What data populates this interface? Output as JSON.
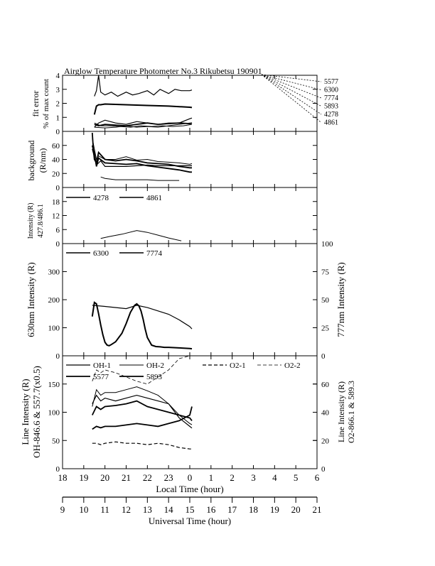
{
  "title": "Airglow Temperature Photometer No.3  Rikubetsu    190901",
  "x_axis_local": {
    "label": "Local Time (hour)",
    "ticks": [
      "18",
      "19",
      "20",
      "21",
      "22",
      "23",
      "0",
      "1",
      "2",
      "3",
      "4",
      "5",
      "6"
    ]
  },
  "x_axis_ut": {
    "label": "Universal Time (hour)",
    "ticks": [
      "9",
      "10",
      "11",
      "12",
      "13",
      "14",
      "15",
      "16",
      "17",
      "18",
      "19",
      "20",
      "21"
    ]
  },
  "right_legend": [
    "5577",
    "6300",
    "7774",
    "5893",
    "4278",
    "4861"
  ],
  "panels": {
    "fit_error": {
      "ylabel1": "fit error",
      "ylabel2": "% of max count",
      "ticks": [
        "0",
        "1",
        "2",
        "3",
        "4"
      ]
    },
    "background": {
      "ylabel1": "background",
      "ylabel2": "(R/nm)",
      "ticks": [
        "0",
        "20",
        "40",
        "60"
      ]
    },
    "hbeta": {
      "ylabel1": "Intensity (R)",
      "ylabel2": "427.8/486.1",
      "ticks": [
        "0",
        "6",
        "12",
        "18"
      ],
      "legend": [
        "4278",
        "4861"
      ]
    },
    "red_line": {
      "ylabel_left": "630nm Intensity (R)",
      "ylabel_right": "777nm Intensity (R)",
      "ticks_left": [
        "0",
        "100",
        "200",
        "300"
      ],
      "ticks_right": [
        "0",
        "25",
        "50",
        "75",
        "100"
      ],
      "legend": [
        "6300",
        "7774"
      ]
    },
    "lines": {
      "ylabel_left1": "Line Intensity (R)",
      "ylabel_left2": "OH-846.6 & 557.7(x0.5)",
      "ylabel_right1": "Line Intensity (R)",
      "ylabel_right2": "O2-866.1 & 589.3",
      "ticks_left": [
        "0",
        "50",
        "100",
        "150"
      ],
      "ticks_right": [
        "0",
        "20",
        "40",
        "60"
      ],
      "legend": [
        "OH-1",
        "OH-2",
        "O2-1",
        "O2-2",
        "5577",
        "5893"
      ]
    }
  },
  "chart_data": {
    "type": "line",
    "title": "Airglow Temperature Photometer No.3  Rikubetsu    190901",
    "xlabel": "Local Time (hour)",
    "xlabel_secondary": "Universal Time (hour)",
    "xlim": [
      18,
      30
    ],
    "panels": [
      {
        "id": "fit_error",
        "ylim": [
          0,
          4
        ],
        "series": [
          {
            "name": "5577",
            "style": "solid",
            "width": 1.2,
            "x": [
              19.5,
              19.6,
              19.7,
              19.8,
              20,
              20.3,
              20.6,
              21,
              21.3,
              21.6,
              22,
              22.3,
              22.6,
              23,
              23.3,
              23.6,
              24,
              24.1
            ],
            "y": [
              2.5,
              2.9,
              4,
              2.8,
              2.6,
              2.8,
              2.5,
              2.8,
              2.6,
              2.7,
              2.9,
              2.6,
              3,
              2.7,
              3.0,
              2.9,
              2.9,
              2.95
            ]
          },
          {
            "name": "6300",
            "style": "solid",
            "width": 2,
            "x": [
              19.5,
              19.6,
              19.7,
              19.8,
              20,
              21,
              22,
              23,
              24,
              24.1
            ],
            "y": [
              1.2,
              1.8,
              1.9,
              1.9,
              1.95,
              1.9,
              1.85,
              1.8,
              1.72,
              1.7
            ]
          },
          {
            "name": "7774",
            "style": "solid",
            "width": 1.2,
            "x": [
              19.5,
              19.7,
              20,
              20.5,
              21,
              21.5,
              22,
              22.5,
              23,
              23.5,
              24,
              24.1
            ],
            "y": [
              0.3,
              0.6,
              0.8,
              0.6,
              0.5,
              0.7,
              0.6,
              0.5,
              0.6,
              0.6,
              0.9,
              0.95
            ]
          },
          {
            "name": "5893",
            "style": "solid",
            "width": 1.8,
            "x": [
              19.5,
              19.7,
              20,
              20.5,
              21,
              21.5,
              22,
              22.5,
              23,
              23.5,
              24,
              24.1
            ],
            "y": [
              0.5,
              0.4,
              0.5,
              0.45,
              0.4,
              0.5,
              0.6,
              0.5,
              0.55,
              0.6,
              0.55,
              0.6
            ]
          },
          {
            "name": "4278",
            "style": "solid",
            "width": 1,
            "x": [
              19.5,
              19.8,
              20.2,
              20.7,
              21.2,
              21.7,
              22.2,
              22.7,
              23.2,
              23.7,
              24.1
            ],
            "y": [
              0.6,
              0.4,
              0.4,
              0.35,
              0.3,
              0.4,
              0.35,
              0.4,
              0.35,
              0.4,
              0.5
            ]
          },
          {
            "name": "4861",
            "style": "solid",
            "width": 1,
            "x": [
              19.5,
              20,
              20.5,
              21,
              21.5,
              22,
              22.5,
              23,
              23.5,
              24,
              24.1
            ],
            "y": [
              0.3,
              0.25,
              0.3,
              0.4,
              0.3,
              0.35,
              0.3,
              0.4,
              0.5,
              0.6,
              0.6
            ]
          }
        ]
      },
      {
        "id": "background",
        "ylim": [
          0,
          80
        ],
        "series": [
          {
            "name": "5577",
            "style": "solid",
            "width": 1.8,
            "x": [
              19.4,
              19.45,
              19.5,
              19.6,
              19.7,
              20,
              20.5,
              21,
              21.5,
              22,
              22.5,
              23,
              23.5,
              24,
              24.1
            ],
            "y": [
              78,
              55,
              40,
              35,
              50,
              40,
              38,
              40,
              38,
              35,
              34,
              33,
              30,
              28,
              28
            ]
          },
          {
            "name": "6300",
            "style": "solid",
            "width": 1.8,
            "x": [
              19.4,
              19.5,
              19.6,
              19.7,
              20,
              20.5,
              21,
              21.5,
              22,
              22.5,
              23,
              23.5,
              24,
              24.1
            ],
            "y": [
              60,
              48,
              30,
              42,
              35,
              34,
              33,
              34,
              31,
              29,
              27,
              25,
              22,
              22
            ]
          },
          {
            "name": "7774",
            "style": "solid",
            "width": 1,
            "x": [
              19.4,
              19.6,
              19.7,
              20,
              20.5,
              21,
              21.5,
              22,
              22.5,
              23,
              23.5,
              24,
              24.1
            ],
            "y": [
              70,
              40,
              45,
              40,
              40,
              44,
              39,
              40,
              37,
              36,
              35,
              33,
              34
            ]
          },
          {
            "name": "5893",
            "style": "solid",
            "width": 1.2,
            "x": [
              19.4,
              19.6,
              19.8,
              20,
              20.5,
              21,
              21.5,
              22,
              22.5,
              23,
              23.5,
              24,
              24.1
            ],
            "y": [
              55,
              32,
              38,
              30,
              30,
              30,
              31,
              32,
              31,
              31,
              31,
              31,
              31
            ]
          },
          {
            "name": "4278",
            "style": "solid",
            "width": 1,
            "x": [
              19.8,
              20,
              20.5,
              21,
              21.5,
              22,
              22.5,
              23,
              23.5
            ],
            "y": [
              15,
              13,
              11,
              11,
              11,
              11,
              10,
              10,
              10
            ]
          }
        ]
      },
      {
        "id": "hbeta",
        "ylim": [
          0,
          24
        ],
        "series": [
          {
            "name": "4278",
            "style": "solid",
            "width": 1,
            "x": [
              19.8,
              20.2,
              20.8,
              21.5,
              22.0,
              22.5,
              23.0,
              23.6
            ],
            "y": [
              2.2,
              3,
              4,
              5.6,
              4.8,
              3.6,
              2.4,
              1.2
            ]
          }
        ]
      },
      {
        "id": "red_line",
        "ylim": [
          0,
          400
        ],
        "y2lim": [
          0,
          100
        ],
        "series": [
          {
            "name": "6300",
            "style": "solid",
            "width": 2,
            "x": [
              19.4,
              19.5,
              19.6,
              19.7,
              19.8,
              19.9,
              20.0,
              20.1,
              20.2,
              20.3,
              20.5,
              20.8,
              21.0,
              21.2,
              21.4,
              21.5,
              21.6,
              21.7,
              21.8,
              21.9,
              22.0,
              22.2,
              22.4,
              22.6,
              22.8,
              23,
              23.5,
              24,
              24.1
            ],
            "y": [
              140,
              190,
              185,
              150,
              110,
              75,
              48,
              38,
              36,
              40,
              50,
              80,
              115,
              155,
              180,
              185,
              178,
              160,
              130,
              95,
              65,
              38,
              33,
              32,
              30,
              30,
              28,
              26,
              25
            ]
          },
          {
            "name": "7774",
            "style": "solid",
            "width": 1.2,
            "x": [
              19.4,
              20,
              21,
              21.5,
              22,
              22.5,
              23,
              23.5,
              24,
              24.1
            ],
            "y": [
              45,
              44,
              42,
              45,
              43,
              40,
              37,
              32,
              26,
              24
            ]
          }
        ]
      },
      {
        "id": "lines",
        "ylim": [
          0,
          200
        ],
        "y2lim": [
          0,
          80
        ],
        "series": [
          {
            "name": "OH-1",
            "style": "solid",
            "width": 1.2,
            "x": [
              19.4,
              19.6,
              19.8,
              20,
              20.5,
              21,
              21.5,
              22,
              22.5,
              23,
              23.5,
              24,
              24.1
            ],
            "y": [
              115,
              130,
              120,
              125,
              120,
              125,
              130,
              125,
              120,
              115,
              90,
              75,
              72
            ]
          },
          {
            "name": "OH-2",
            "style": "solid",
            "width": 1,
            "x": [
              19.4,
              19.6,
              19.8,
              20,
              20.5,
              21,
              21.5,
              22,
              22.5,
              23,
              23.5,
              24,
              24.1
            ],
            "y": [
              110,
              140,
              130,
              135,
              135,
              140,
              145,
              138,
              130,
              115,
              95,
              80,
              78
            ]
          },
          {
            "name": "5577",
            "style": "solid",
            "width": 1.8,
            "x": [
              19.4,
              19.6,
              19.8,
              20,
              20.5,
              21,
              21.5,
              22,
              22.5,
              23,
              23.5,
              24,
              24.1
            ],
            "y": [
              95,
              110,
              105,
              110,
              112,
              115,
              120,
              110,
              105,
              100,
              95,
              90,
              85
            ]
          },
          {
            "name": "5893",
            "style": "solid",
            "width": 1.8,
            "x": [
              19.4,
              19.6,
              19.8,
              20,
              20.5,
              21,
              21.5,
              22,
              22.5,
              23,
              23.5,
              24,
              24.1
            ],
            "y": [
              28,
              30,
              29,
              30,
              30,
              31,
              32,
              31,
              30,
              32,
              34,
              38,
              44
            ]
          },
          {
            "name": "O2-1",
            "style": "dashed",
            "width": 1.2,
            "x": [
              19.4,
              19.6,
              19.8,
              20,
              20.5,
              21,
              21.5,
              22,
              22.5,
              23,
              23.5,
              24,
              24.1
            ],
            "y": [
              18,
              18,
              17,
              18,
              19,
              18,
              18,
              17,
              18,
              17,
              15,
              14,
              14
            ]
          },
          {
            "name": "O2-2",
            "style": "dashed",
            "width": 0.8,
            "x": [
              19.4,
              19.6,
              19.8,
              20,
              20.5,
              21,
              21.5,
              22,
              22.5,
              23,
              23.5,
              24,
              24.2
            ],
            "y": [
              62,
              70,
              68,
              70,
              68,
              65,
              62,
              60,
              65,
              70,
              78,
              85,
              90
            ]
          }
        ]
      }
    ]
  }
}
